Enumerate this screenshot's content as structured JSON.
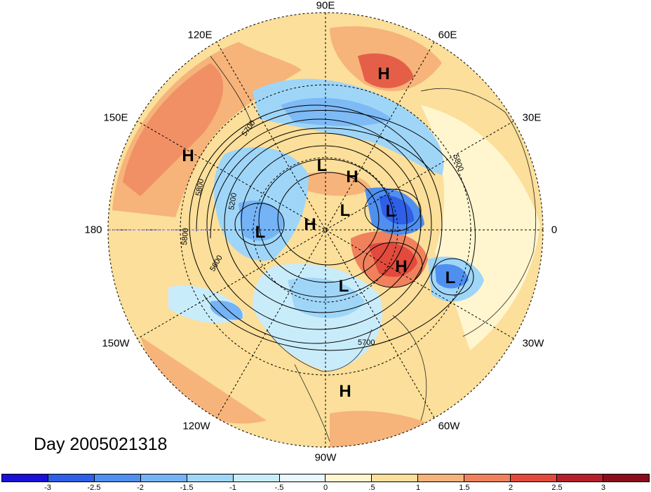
{
  "title": "Day 2005021318",
  "longitude_labels": {
    "north": "90E",
    "e60": "60E",
    "e30": "30E",
    "east": "0",
    "w30": "30W",
    "w60": "60W",
    "south": "90W",
    "w120": "120W",
    "w150": "150W",
    "west": "180",
    "e150": "150E",
    "e120": "120E"
  },
  "pressure_centers": [
    {
      "label": "H",
      "name": "high-siberia"
    },
    {
      "label": "L",
      "name": "low-north-central"
    },
    {
      "label": "H",
      "name": "high-north-central"
    },
    {
      "label": "L",
      "name": "low-west"
    },
    {
      "label": "H",
      "name": "high-pole-west"
    },
    {
      "label": "L",
      "name": "low-pole"
    },
    {
      "label": "L",
      "name": "low-scandinavia"
    },
    {
      "label": "H",
      "name": "high-north-atlantic"
    },
    {
      "label": "L",
      "name": "low-east-atlantic"
    },
    {
      "label": "L",
      "name": "low-labrador"
    },
    {
      "label": "H",
      "name": "high-gulf"
    }
  ],
  "contour_labels": [
    "5700",
    "5800",
    "5200",
    "5800",
    "5800",
    "5600",
    "5700"
  ],
  "colorbar": {
    "ticks": [
      "-3",
      "-2.5",
      "-2",
      "-1.5",
      "-1",
      "-.5",
      "0",
      ".5",
      "1",
      "1.5",
      "2",
      "2.5",
      "3"
    ],
    "colors": [
      "#1a10d8",
      "#2f5fe6",
      "#4f8fef",
      "#74b3f5",
      "#9fd6f8",
      "#c9ecfb",
      "#e8f8fd",
      "#fff6cf",
      "#fbdf9a",
      "#f6b37a",
      "#f0815c",
      "#e14a3c",
      "#b5202a",
      "#8b0d1e"
    ]
  }
}
